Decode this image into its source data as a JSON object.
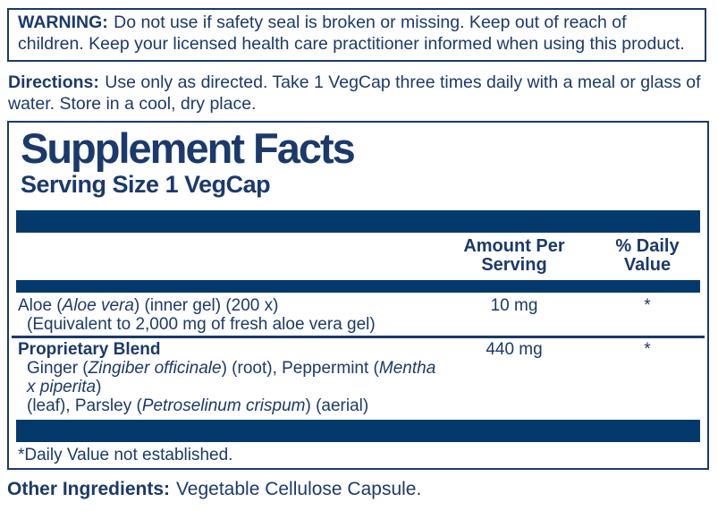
{
  "colors": {
    "navy_text": "#1b3a6b",
    "navy_bar": "#043a6b",
    "background": "#ffffff"
  },
  "warning": {
    "label": "WARNING:",
    "text": "Do not use if safety seal is broken or missing. Keep out of reach of children. Keep your licensed health care practitioner informed when using this product."
  },
  "directions": {
    "label": "Directions:",
    "text": "Use only as directed. Take 1 VegCap three times daily with a meal or glass of water. Store in a cool, dry place."
  },
  "supplement_facts": {
    "title": "Supplement Facts",
    "serving_size": "Serving Size 1 VegCap",
    "columns": {
      "amount": "Amount Per\nServing",
      "daily_value": "% Daily\nValue"
    },
    "rows": [
      {
        "name_segments": [
          {
            "t": "Aloe ("
          },
          {
            "t": "Aloe vera",
            "i": true
          },
          {
            "t": ") (inner gel) (200 x)"
          }
        ],
        "sub_segments": [
          {
            "t": "(Equivalent to 2,000 mg of fresh aloe vera gel)"
          }
        ],
        "amount": "10 mg",
        "daily_value": "*"
      },
      {
        "name_segments": [
          {
            "t": "Proprietary Blend"
          }
        ],
        "sub_segments": [
          {
            "t": "Ginger ("
          },
          {
            "t": "Zingiber officinale",
            "i": true
          },
          {
            "t": ") (root), Peppermint ("
          },
          {
            "t": "Mentha x piperita",
            "i": true
          },
          {
            "t": ")\n(leaf), Parsley ("
          },
          {
            "t": "Petroselinum crispum",
            "i": true
          },
          {
            "t": ") (aerial)"
          }
        ],
        "amount": "440 mg",
        "daily_value": "*"
      }
    ],
    "footnote": "*Daily Value not established."
  },
  "other_ingredients": {
    "label": "Other Ingredients:",
    "text": "Vegetable Cellulose Capsule."
  }
}
